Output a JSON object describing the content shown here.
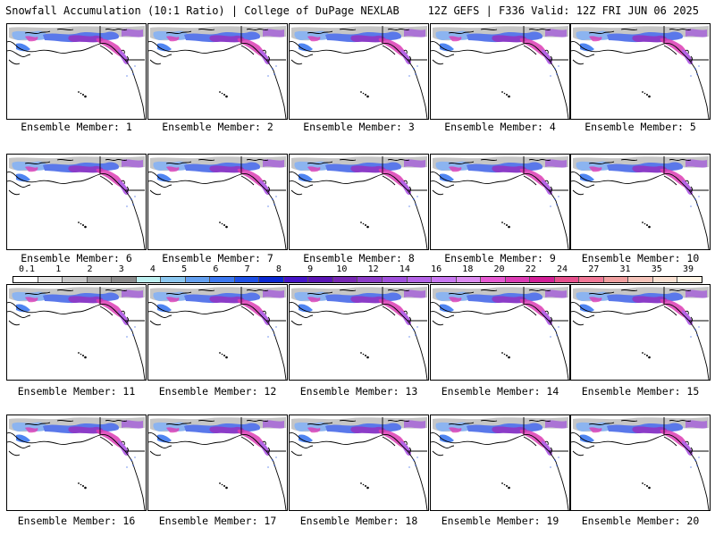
{
  "header": {
    "left": "Snowfall Accumulation (10:1 Ratio) | College of DuPage NEXLAB",
    "right": "12Z GEFS | F336 Valid: 12Z FRI JUN 06 2025"
  },
  "colorbar": {
    "labels": [
      "0.1",
      "1",
      "2",
      "3",
      "4",
      "5",
      "6",
      "7",
      "8",
      "9",
      "10",
      "12",
      "14",
      "16",
      "18",
      "20",
      "22",
      "24",
      "27",
      "31",
      "35",
      "39"
    ],
    "colors": [
      "#ffffff",
      "#e6e6e6",
      "#c8c8c8",
      "#a0a0a0",
      "#8a8a8a",
      "#bdf0f0",
      "#8cc8f0",
      "#64a0f0",
      "#3c78f0",
      "#1e50e6",
      "#0a28d2",
      "#4614c8",
      "#5a14b4",
      "#7828b4",
      "#8c3cc8",
      "#a050dc",
      "#b464e6",
      "#c878f0",
      "#dc8cf0",
      "#e65ad2",
      "#dc3cb4",
      "#d21e96",
      "#e6508c",
      "#f07896",
      "#f0a0a0",
      "#f5c3b9",
      "#fae1d2",
      "#fff5e6"
    ]
  },
  "panels": [
    {
      "label": "Ensemble Member: 1"
    },
    {
      "label": "Ensemble Member: 2"
    },
    {
      "label": "Ensemble Member: 3"
    },
    {
      "label": "Ensemble Member: 4"
    },
    {
      "label": "Ensemble Member: 5"
    },
    {
      "label": "Ensemble Member: 6"
    },
    {
      "label": "Ensemble Member: 7"
    },
    {
      "label": "Ensemble Member: 8"
    },
    {
      "label": "Ensemble Member: 9"
    },
    {
      "label": "Ensemble Member: 10"
    },
    {
      "label": "Ensemble Member: 11"
    },
    {
      "label": "Ensemble Member: 12"
    },
    {
      "label": "Ensemble Member: 13"
    },
    {
      "label": "Ensemble Member: 14"
    },
    {
      "label": "Ensemble Member: 15"
    },
    {
      "label": "Ensemble Member: 16"
    },
    {
      "label": "Ensemble Member: 17"
    },
    {
      "label": "Ensemble Member: 18"
    },
    {
      "label": "Ensemble Member: 19"
    },
    {
      "label": "Ensemble Member: 20"
    }
  ]
}
